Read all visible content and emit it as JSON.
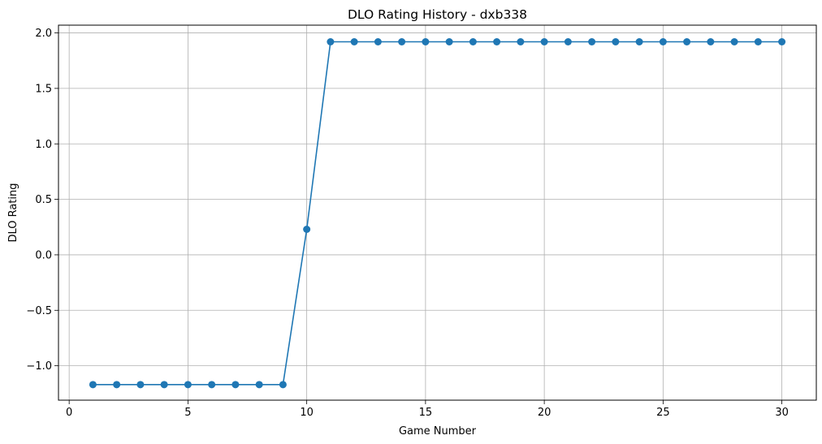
{
  "chart_data": {
    "type": "line",
    "title": "DLO Rating History - dxb338",
    "xlabel": "Game Number",
    "ylabel": "DLO Rating",
    "xlim": [
      -0.45,
      31.45
    ],
    "ylim": [
      -1.31,
      2.07
    ],
    "xticks": [
      0,
      5,
      10,
      15,
      20,
      25,
      30
    ],
    "xtick_labels": [
      "0",
      "5",
      "10",
      "15",
      "20",
      "25",
      "30"
    ],
    "yticks": [
      -1.0,
      -0.5,
      0.0,
      0.5,
      1.0,
      1.5,
      2.0
    ],
    "ytick_labels": [
      "−1.0",
      "−0.5",
      "0.0",
      "0.5",
      "1.0",
      "1.5",
      "2.0"
    ],
    "grid": true,
    "series": [
      {
        "color": "#1f77b4",
        "marker": "circle",
        "x": [
          1,
          2,
          3,
          4,
          5,
          6,
          7,
          8,
          9,
          10,
          11,
          12,
          13,
          14,
          15,
          16,
          17,
          18,
          19,
          20,
          21,
          22,
          23,
          24,
          25,
          26,
          27,
          28,
          29,
          30
        ],
        "y": [
          -1.17,
          -1.17,
          -1.17,
          -1.17,
          -1.17,
          -1.17,
          -1.17,
          -1.17,
          -1.17,
          0.23,
          1.92,
          1.92,
          1.92,
          1.92,
          1.92,
          1.92,
          1.92,
          1.92,
          1.92,
          1.92,
          1.92,
          1.92,
          1.92,
          1.92,
          1.92,
          1.92,
          1.92,
          1.92,
          1.92,
          1.92
        ]
      }
    ]
  }
}
